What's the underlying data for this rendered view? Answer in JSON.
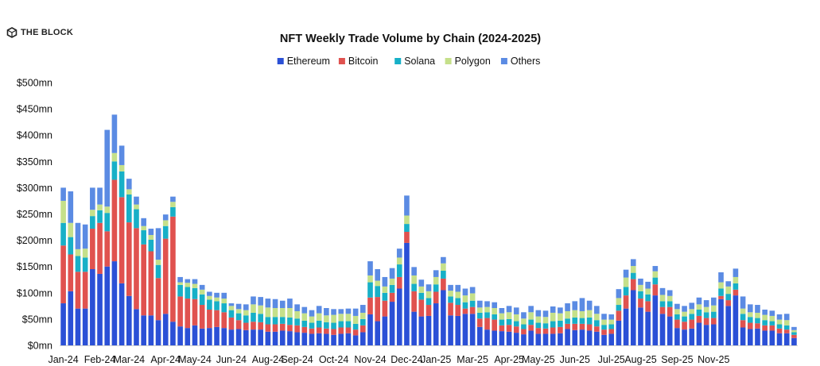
{
  "brand": {
    "name": "THE BLOCK",
    "icon": "cube-logo-icon"
  },
  "chart_data": {
    "type": "bar",
    "stacked": true,
    "title": "NFT Weekly Trade Volume by Chain (2024-2025)",
    "xlabel": "",
    "ylabel": "",
    "ylim": [
      0,
      500
    ],
    "y_ticks": [
      0,
      50,
      100,
      150,
      200,
      250,
      300,
      350,
      400,
      450,
      500
    ],
    "y_tick_labels": [
      "$0mn",
      "$50mn",
      "$100mn",
      "$150mn",
      "$200mn",
      "$250mn",
      "$300mn",
      "$350mn",
      "$400mn",
      "$450mn",
      "$500mn"
    ],
    "legend_position": "top-center",
    "x_tick_labels": [
      {
        "label": "Jan-24",
        "index": 0
      },
      {
        "label": "Feb-24",
        "index": 5
      },
      {
        "label": "Mar-24",
        "index": 9
      },
      {
        "label": "Apr-24",
        "index": 14
      },
      {
        "label": "May-24",
        "index": 18
      },
      {
        "label": "Jun-24",
        "index": 23
      },
      {
        "label": "Aug-24",
        "index": 28
      },
      {
        "label": "Sep-24",
        "index": 32
      },
      {
        "label": "Oct-24",
        "index": 37
      },
      {
        "label": "Nov-24",
        "index": 42
      },
      {
        "label": "Dec-24",
        "index": 47
      },
      {
        "label": "Jan-25",
        "index": 51
      },
      {
        "label": "Mar-25",
        "index": 56
      },
      {
        "label": "Apr-25",
        "index": 61
      },
      {
        "label": "May-25",
        "index": 65
      },
      {
        "label": "Jun-25",
        "index": 70
      },
      {
        "label": "Jul-25",
        "index": 75
      },
      {
        "label": "Aug-25",
        "index": 79
      },
      {
        "label": "Sep-25",
        "index": 84
      },
      {
        "label": "Nov-25",
        "index": 89
      }
    ],
    "series": [
      {
        "name": "Ethereum",
        "color": "#2b50d6",
        "values": [
          80,
          103,
          70,
          70,
          145,
          136,
          150,
          160,
          118,
          94,
          69,
          57,
          57,
          48,
          60,
          45,
          36,
          33,
          38,
          32,
          33,
          35,
          33,
          30,
          31,
          29,
          30,
          30,
          26,
          26,
          28,
          27,
          25,
          24,
          22,
          23,
          22,
          20,
          22,
          23,
          19,
          25,
          59,
          46,
          55,
          83,
          108,
          195,
          64,
          55,
          56,
          80,
          105,
          57,
          56,
          60,
          60,
          35,
          30,
          28,
          27,
          26,
          24,
          21,
          28,
          22,
          22,
          22,
          23,
          31,
          29,
          30,
          28,
          26,
          20,
          22,
          47,
          70,
          105,
          72,
          64,
          95,
          60,
          55,
          33,
          30,
          32,
          43,
          39,
          40,
          88,
          75,
          95,
          34,
          31,
          32,
          28,
          28,
          23,
          23,
          14
        ]
      },
      {
        "name": "Bitcoin",
        "color": "#e0524f",
        "values": [
          110,
          70,
          70,
          70,
          77,
          97,
          67,
          155,
          164,
          140,
          154,
          135,
          122,
          80,
          143,
          200,
          57,
          56,
          50,
          45,
          35,
          32,
          30,
          23,
          17,
          14,
          15,
          14,
          14,
          14,
          13,
          12,
          13,
          11,
          10,
          11,
          10,
          11,
          12,
          11,
          11,
          13,
          32,
          46,
          30,
          17,
          22,
          21,
          39,
          32,
          21,
          22,
          22,
          24,
          21,
          10,
          13,
          16,
          22,
          21,
          11,
          13,
          12,
          10,
          11,
          11,
          10,
          12,
          12,
          10,
          12,
          11,
          12,
          10,
          10,
          9,
          19,
          25,
          21,
          17,
          20,
          21,
          13,
          18,
          16,
          15,
          17,
          13,
          13,
          12,
          6,
          11,
          11,
          14,
          12,
          10,
          10,
          10,
          9,
          7,
          6
        ]
      },
      {
        "name": "Solana",
        "color": "#17b0c7",
        "values": [
          43,
          33,
          30,
          27,
          24,
          24,
          35,
          35,
          49,
          53,
          36,
          27,
          22,
          25,
          24,
          18,
          22,
          22,
          21,
          20,
          19,
          17,
          17,
          14,
          13,
          14,
          17,
          16,
          14,
          14,
          13,
          14,
          13,
          12,
          11,
          13,
          12,
          12,
          12,
          12,
          11,
          12,
          29,
          21,
          15,
          15,
          24,
          15,
          14,
          13,
          13,
          14,
          15,
          12,
          13,
          12,
          12,
          11,
          11,
          10,
          11,
          11,
          10,
          9,
          10,
          10,
          10,
          12,
          12,
          10,
          12,
          11,
          13,
          12,
          9,
          9,
          11,
          16,
          12,
          14,
          13,
          13,
          11,
          11,
          10,
          10,
          11,
          12,
          11,
          12,
          14,
          12,
          12,
          12,
          11,
          10,
          10,
          8,
          8,
          8,
          5
        ]
      },
      {
        "name": "Polygon",
        "color": "#c5e08a",
        "values": [
          42,
          27,
          13,
          17,
          12,
          11,
          12,
          16,
          12,
          10,
          9,
          8,
          9,
          10,
          11,
          10,
          5,
          8,
          8,
          9,
          7,
          7,
          9,
          8,
          8,
          10,
          16,
          16,
          18,
          17,
          17,
          18,
          14,
          14,
          12,
          14,
          13,
          15,
          14,
          14,
          15,
          12,
          13,
          10,
          12,
          12,
          13,
          16,
          16,
          12,
          13,
          14,
          14,
          11,
          12,
          13,
          14,
          10,
          10,
          12,
          12,
          13,
          13,
          11,
          14,
          12,
          12,
          16,
          14,
          14,
          14,
          13,
          14,
          12,
          10,
          9,
          13,
          18,
          13,
          12,
          11,
          12,
          12,
          10,
          10,
          9,
          9,
          10,
          10,
          12,
          12,
          14,
          12,
          10,
          9,
          10,
          10,
          10,
          9,
          10,
          4
        ]
      },
      {
        "name": "Others",
        "color": "#5b8be3",
        "values": [
          25,
          60,
          50,
          46,
          42,
          32,
          146,
          73,
          37,
          20,
          15,
          15,
          12,
          60,
          11,
          10,
          10,
          7,
          9,
          9,
          8,
          9,
          11,
          5,
          10,
          11,
          15,
          16,
          17,
          17,
          14,
          18,
          13,
          12,
          12,
          14,
          14,
          11,
          9,
          10,
          14,
          15,
          27,
          22,
          18,
          20,
          17,
          38,
          16,
          13,
          13,
          13,
          12,
          11,
          13,
          13,
          12,
          13,
          11,
          11,
          10,
          12,
          13,
          12,
          12,
          12,
          12,
          12,
          11,
          15,
          17,
          25,
          18,
          15,
          11,
          10,
          17,
          15,
          13,
          12,
          13,
          10,
          13,
          11,
          10,
          11,
          12,
          13,
          13,
          15,
          19,
          10,
          16,
          23,
          15,
          15,
          10,
          10,
          10,
          12,
          6
        ]
      }
    ]
  }
}
